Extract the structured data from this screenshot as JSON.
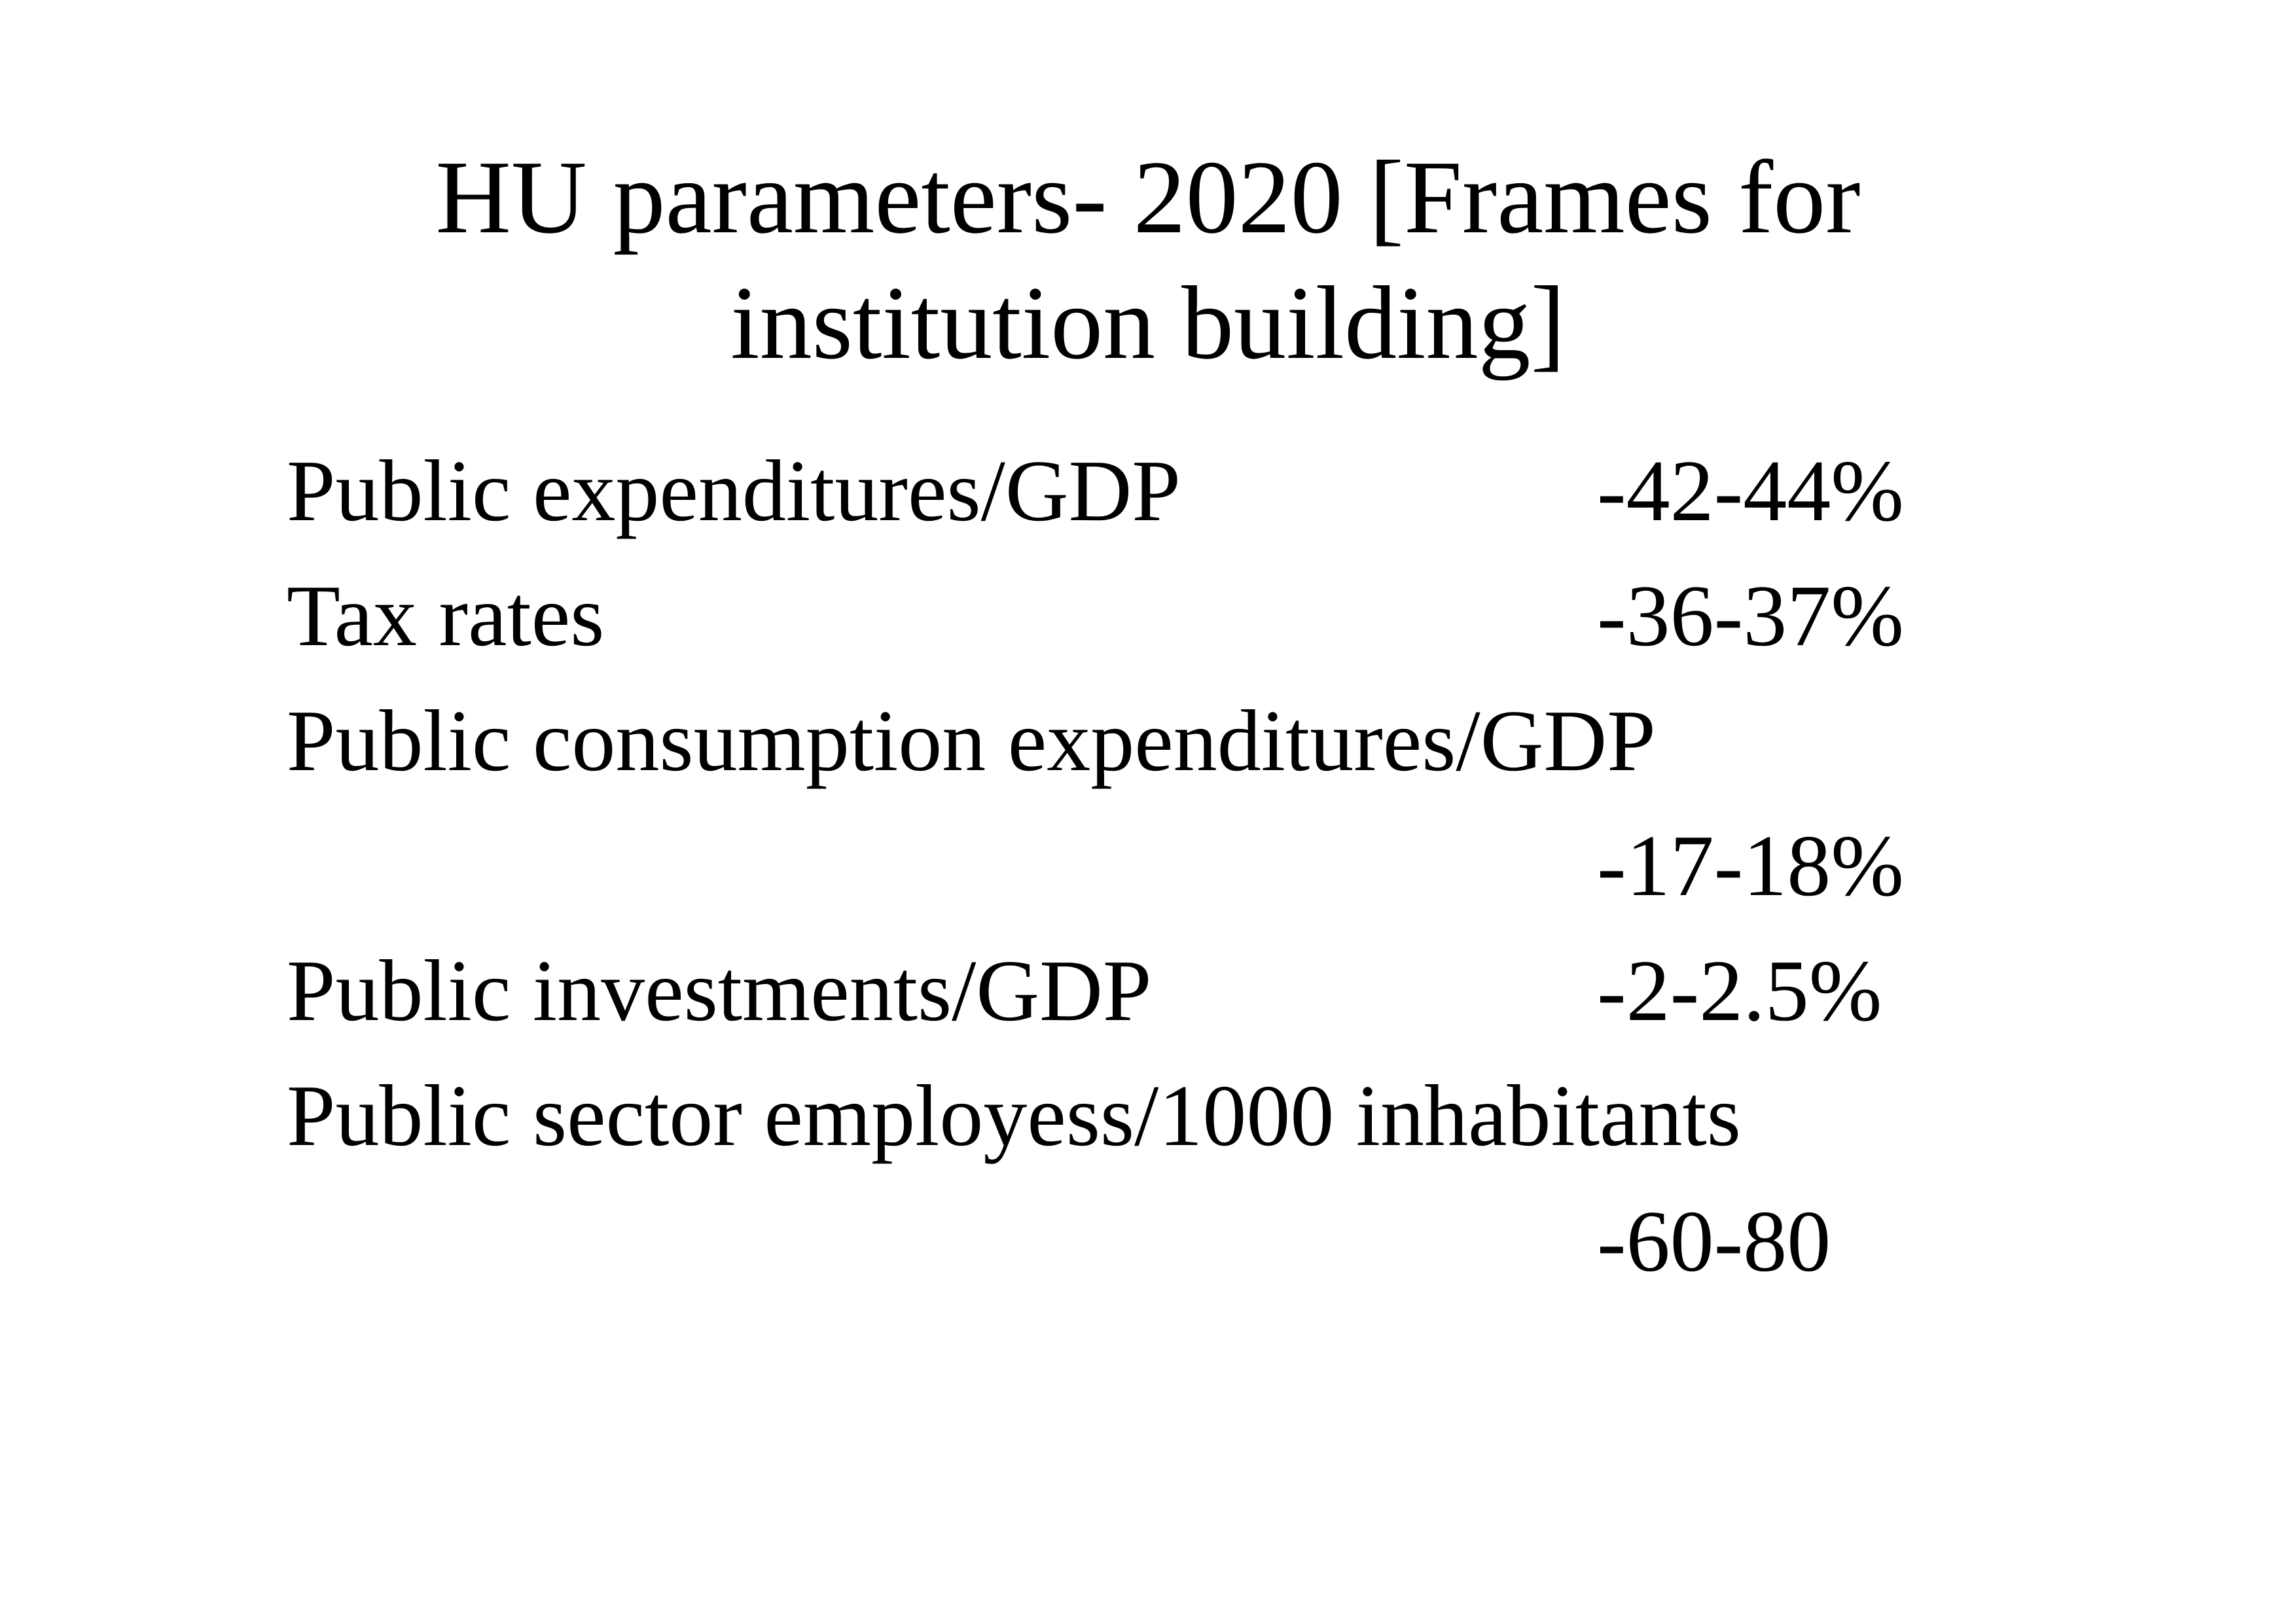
{
  "header": {
    "title": "HU parameters- 2020 [Frames for institution building]"
  },
  "items": [
    {
      "label": "Public expenditures/GDP",
      "value": "-42-44%"
    },
    {
      "label": "Tax rates",
      "value": "-36-37%"
    },
    {
      "label": "Public consumption expenditures/GDP",
      "value": "-17-18%"
    },
    {
      "label": "Public investments/GDP",
      "value": "-2-2.5%"
    },
    {
      "label": "Public sector employess/1000 inhabitants",
      "value": "-60-80"
    }
  ]
}
